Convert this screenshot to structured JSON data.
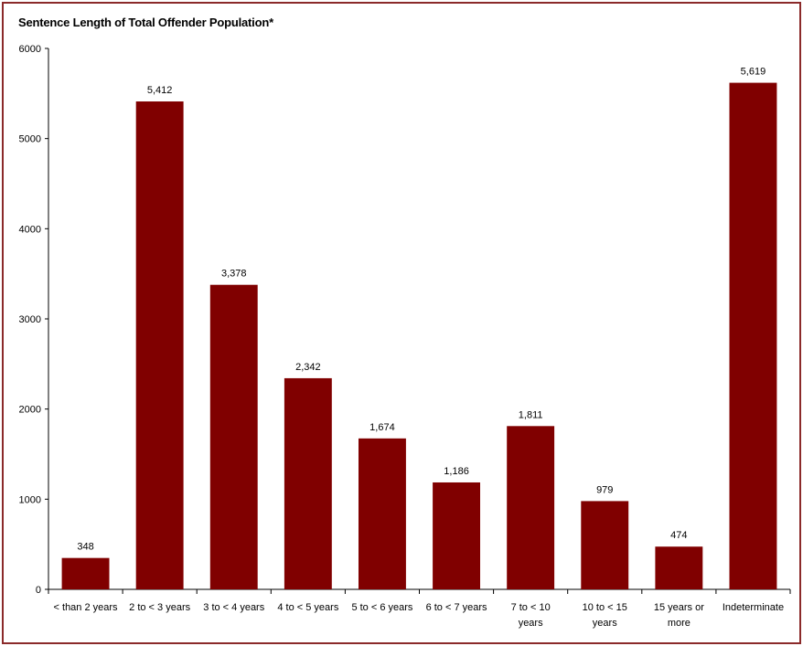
{
  "chart_data": {
    "type": "bar",
    "title": "Sentence Length of Total Offender Population*",
    "xlabel": "",
    "ylabel": "",
    "categories": [
      [
        "< than 2 years"
      ],
      [
        "2 to < 3 years"
      ],
      [
        "3 to < 4 years"
      ],
      [
        "4 to < 5 years"
      ],
      [
        "5 to < 6 years"
      ],
      [
        "6 to < 7 years"
      ],
      [
        "7 to < 10",
        "years"
      ],
      [
        "10 to < 15",
        "years"
      ],
      [
        "15 years or",
        "more"
      ],
      [
        "Indeterminate"
      ]
    ],
    "values": [
      348,
      5412,
      3378,
      2342,
      1674,
      1186,
      1811,
      979,
      474,
      5619
    ],
    "value_labels": [
      "348",
      "5,412",
      "3,378",
      "2,342",
      "1,674",
      "1,186",
      "1,811",
      "979",
      "474",
      "5,619"
    ],
    "ylim": [
      0,
      6000
    ],
    "yticks": [
      0,
      1000,
      2000,
      3000,
      4000,
      5000,
      6000
    ],
    "grid": false,
    "bar_color": "#800000",
    "frame_color": "#8b2a2a"
  }
}
